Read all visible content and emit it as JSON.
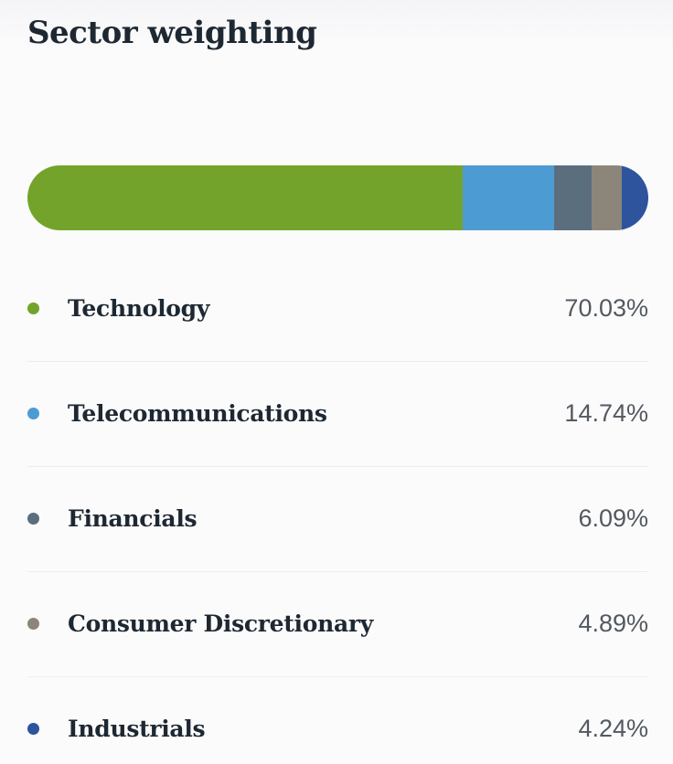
{
  "title": "Sector weighting",
  "colors": {
    "technology": "#74A32B",
    "telecommunications": "#4D9BD3",
    "financials": "#5B6E7E",
    "consumer_discretionary": "#8C857A",
    "industrials": "#2D549D",
    "heading_text": "#1E2832",
    "value_text": "#53595F",
    "separator": "#EBEDF0",
    "background": "#FBFBFC"
  },
  "chart_data": {
    "type": "bar",
    "variant": "stacked-horizontal",
    "title": "Sector weighting",
    "legend_position": "below",
    "grid": false,
    "categories": [
      "Technology",
      "Telecommunications",
      "Financials",
      "Consumer Discretionary",
      "Industrials"
    ],
    "values": [
      70.03,
      14.74,
      6.09,
      4.89,
      4.24
    ],
    "value_labels": [
      "70.03%",
      "14.74%",
      "6.09%",
      "4.89%",
      "4.24%"
    ],
    "segment_colors": [
      "#74A32B",
      "#4D9BD3",
      "#5B6E7E",
      "#8C857A",
      "#2D549D"
    ],
    "total": 100
  }
}
